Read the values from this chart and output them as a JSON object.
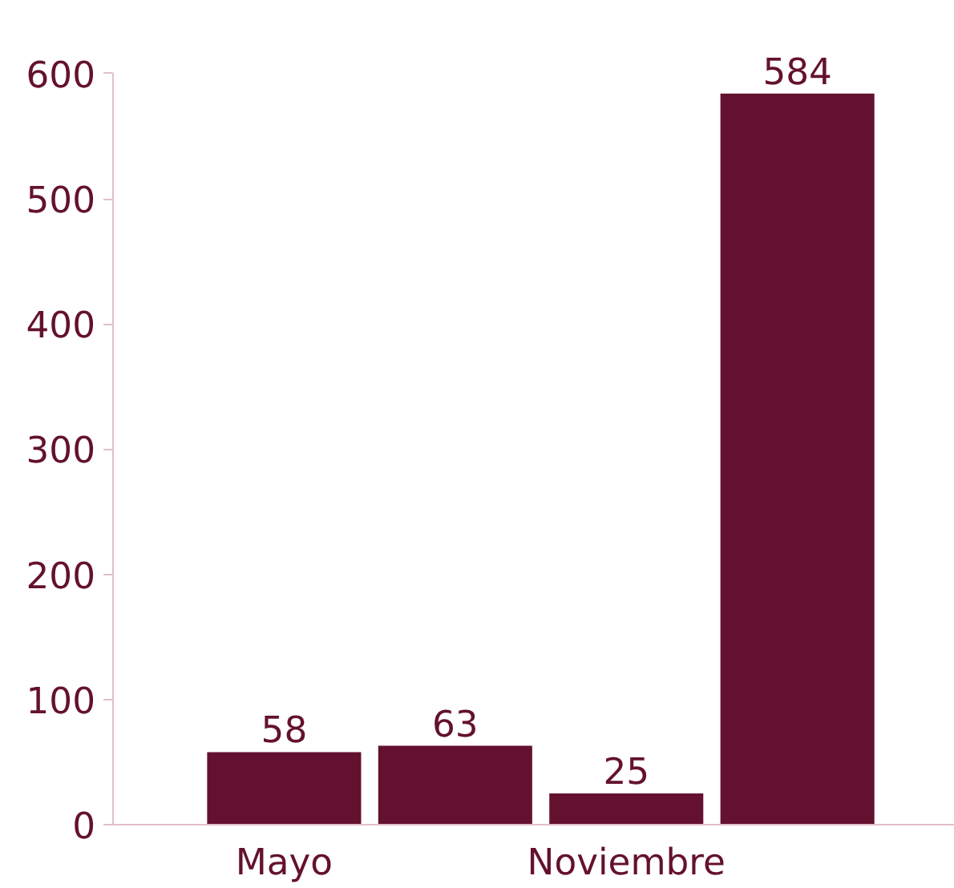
{
  "chart_data": {
    "type": "bar",
    "categories": [
      "Mayo",
      null,
      "Noviembre",
      null
    ],
    "values": [
      58,
      63,
      25,
      584
    ],
    "color": "#64112f",
    "ylim": [
      0,
      600
    ],
    "yticks": [
      0,
      100,
      200,
      300,
      400,
      500,
      600
    ],
    "data_labels": true,
    "grid": false
  }
}
